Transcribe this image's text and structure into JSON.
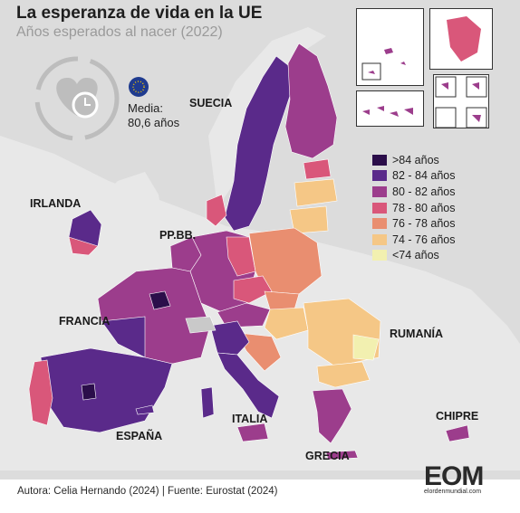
{
  "title": "La esperanza de vida en la UE",
  "subtitle": "Años esperados al nacer (2022)",
  "average": {
    "label": "Media:",
    "value": "80,6 años"
  },
  "icons": {
    "heart_clock": "heart-clock-icon",
    "eu_flag": "eu-flag-icon"
  },
  "legend": [
    {
      "label": ">84 años",
      "color": "#2b0e4a"
    },
    {
      "label": "82 - 84 años",
      "color": "#5a2a8a"
    },
    {
      "label": "80 - 82 años",
      "color": "#9c3d8c"
    },
    {
      "label": "78 - 80 años",
      "color": "#d9577a"
    },
    {
      "label": "76 - 78 años",
      "color": "#e98e70"
    },
    {
      "label": "74 - 76 años",
      "color": "#f5c786"
    },
    {
      "label": "<74 años",
      "color": "#f2f0b0"
    }
  ],
  "countries": {
    "suecia": "SUECIA",
    "irlanda": "IRLANDA",
    "ppbb": "PP.BB.",
    "francia": "FRANCIA",
    "rumania": "RUMANÍA",
    "chipre": "CHIPRE",
    "italia": "ITALIA",
    "espana": "ESPAÑA",
    "grecia": "GRECIA"
  },
  "credits": "Autora: Celia Hernando (2024) | Fuente: Eurostat (2024)",
  "logo": {
    "main": "EOM",
    "sub": "elordenmundial.com"
  },
  "colors": {
    "background": "#dcdcdc",
    "land_non_eu": "#e8e8e8",
    "sea": "#dcdcdc"
  }
}
